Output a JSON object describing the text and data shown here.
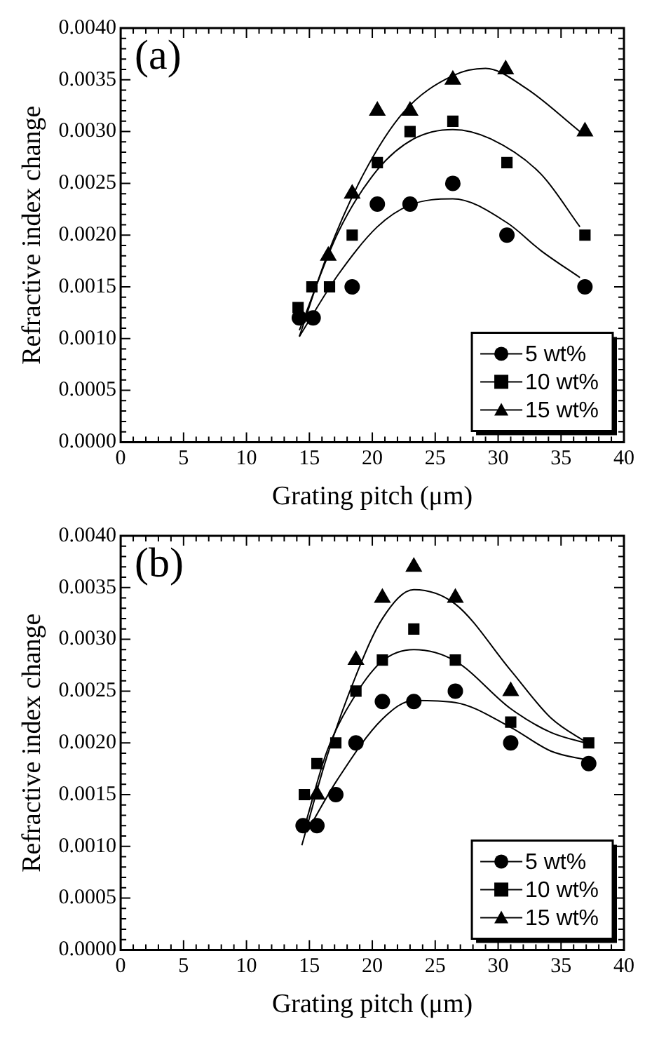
{
  "chart_data": [
    {
      "type": "scatter",
      "annotations": [
        "(a)"
      ],
      "xlabel": "Grating pitch (μm)",
      "ylabel": "Refractive index change",
      "xlim": [
        0,
        40
      ],
      "xticks": [
        0,
        5,
        10,
        15,
        20,
        25,
        30,
        35,
        40
      ],
      "ylim": [
        0,
        0.004
      ],
      "yticks": [
        {
          "value": 0,
          "label": "0.0000"
        },
        {
          "value": 0.0005,
          "label": "0.0005"
        },
        {
          "value": 0.001,
          "label": "0.0010"
        },
        {
          "value": 0.0015,
          "label": "0.0015"
        },
        {
          "value": 0.002,
          "label": "0.0020"
        },
        {
          "value": 0.0025,
          "label": "0.0025"
        },
        {
          "value": 0.003,
          "label": "0.0030"
        },
        {
          "value": 0.0035,
          "label": "0.0035"
        },
        {
          "value": 0.004,
          "label": "0.0040"
        }
      ],
      "grid": false,
      "legend": "bottom right",
      "series": [
        {
          "name": "5 wt%",
          "color": "#000000",
          "marker": "circle",
          "x": [
            14.2,
            15.3,
            18.4,
            20.4,
            23.0,
            26.4,
            30.7,
            36.9
          ],
          "values": [
            0.0012,
            0.0012,
            0.0015,
            0.0023,
            0.0023,
            0.0025,
            0.002,
            0.0015
          ]
        },
        {
          "name": "10 wt%",
          "color": "#000000",
          "marker": "square",
          "x": [
            14.1,
            15.2,
            16.6,
            18.4,
            20.4,
            23.0,
            26.4,
            30.7,
            36.9
          ],
          "values": [
            0.0013,
            0.0015,
            0.0015,
            0.002,
            0.0027,
            0.003,
            0.0031,
            0.0027,
            0.002
          ]
        },
        {
          "name": "15 wt%",
          "color": "#000000",
          "marker": "triangle",
          "x": [
            16.5,
            18.4,
            20.4,
            23.0,
            26.4,
            30.6,
            36.9
          ],
          "values": [
            0.0018,
            0.0024,
            0.0032,
            0.0032,
            0.0035,
            0.0036,
            0.003
          ]
        },
        {
          "type": "line",
          "color": "#000000",
          "marker": "none",
          "x": [
            14.2,
            17.3,
            20.4,
            23.0,
            26.4,
            30.7,
            33.4,
            36.5
          ],
          "values": [
            0.00102,
            0.00162,
            0.00208,
            0.00229,
            0.00235,
            0.00212,
            0.00185,
            0.00159
          ]
        },
        {
          "type": "line",
          "color": "#000000",
          "marker": "none",
          "x": [
            14.2,
            17.3,
            20.4,
            23.3,
            26.4,
            29.4,
            33.4,
            36.5
          ],
          "values": [
            0.00108,
            0.00203,
            0.00263,
            0.00293,
            0.00302,
            0.00293,
            0.00259,
            0.00208
          ]
        },
        {
          "type": "line",
          "color": "#000000",
          "marker": "none",
          "x": [
            14.2,
            16.4,
            19.3,
            22.5,
            26.4,
            29.0,
            32.2,
            36.5
          ],
          "values": [
            0.00102,
            0.0018,
            0.00259,
            0.00319,
            0.00354,
            0.00361,
            0.00342,
            0.003
          ]
        }
      ]
    },
    {
      "type": "scatter",
      "annotations": [
        "(b)"
      ],
      "xlabel": "Grating pitch (μm)",
      "ylabel": "Refractive index change",
      "xlim": [
        0,
        40
      ],
      "xticks": [
        0,
        5,
        10,
        15,
        20,
        25,
        30,
        35,
        40
      ],
      "ylim": [
        0,
        0.004
      ],
      "yticks": [
        {
          "value": 0,
          "label": "0.0000"
        },
        {
          "value": 0.0005,
          "label": "0.0005"
        },
        {
          "value": 0.001,
          "label": "0.0010"
        },
        {
          "value": 0.0015,
          "label": "0.0015"
        },
        {
          "value": 0.002,
          "label": "0.0020"
        },
        {
          "value": 0.0025,
          "label": "0.0025"
        },
        {
          "value": 0.003,
          "label": "0.0030"
        },
        {
          "value": 0.0035,
          "label": "0.0035"
        },
        {
          "value": 0.004,
          "label": "0.0040"
        }
      ],
      "grid": false,
      "legend": "bottom right",
      "series": [
        {
          "name": "5 wt%",
          "color": "#000000",
          "marker": "circle",
          "x": [
            14.5,
            15.6,
            17.1,
            18.7,
            20.8,
            23.3,
            26.6,
            31.0,
            37.2
          ],
          "values": [
            0.0012,
            0.0012,
            0.0015,
            0.002,
            0.0024,
            0.0024,
            0.0025,
            0.002,
            0.0018
          ]
        },
        {
          "name": "10 wt%",
          "color": "#000000",
          "marker": "square",
          "x": [
            14.6,
            15.6,
            17.1,
            18.7,
            20.8,
            23.3,
            26.6,
            31.0,
            37.2
          ],
          "values": [
            0.0015,
            0.0018,
            0.002,
            0.0025,
            0.0028,
            0.0031,
            0.0028,
            0.0022,
            0.002
          ]
        },
        {
          "name": "15 wt%",
          "color": "#000000",
          "marker": "triangle",
          "x": [
            15.6,
            18.7,
            20.8,
            23.3,
            26.6,
            31.0
          ],
          "values": [
            0.0015,
            0.0028,
            0.0034,
            0.0037,
            0.0034,
            0.0025
          ]
        },
        {
          "type": "line",
          "color": "#000000",
          "marker": "none",
          "x": [
            14.8,
            17.2,
            20.8,
            23.3,
            26.6,
            31.0,
            34.2,
            37.2
          ],
          "values": [
            0.00114,
            0.00164,
            0.00223,
            0.00241,
            0.00239,
            0.00215,
            0.00192,
            0.00183
          ]
        },
        {
          "type": "line",
          "color": "#000000",
          "marker": "none",
          "x": [
            14.6,
            16.4,
            18.7,
            20.8,
            23.3,
            26.6,
            31.0,
            34.2,
            37.2
          ],
          "values": [
            0.00118,
            0.00192,
            0.00247,
            0.00279,
            0.0029,
            0.00279,
            0.00233,
            0.0021,
            0.00199
          ]
        },
        {
          "type": "line",
          "color": "#000000",
          "marker": "none",
          "x": [
            14.4,
            16.4,
            18.7,
            20.8,
            23.3,
            26.6,
            31.0,
            34.2,
            37.2
          ],
          "values": [
            0.00101,
            0.00187,
            0.00265,
            0.0032,
            0.00348,
            0.00334,
            0.0027,
            0.00224,
            0.00199
          ]
        }
      ]
    }
  ]
}
